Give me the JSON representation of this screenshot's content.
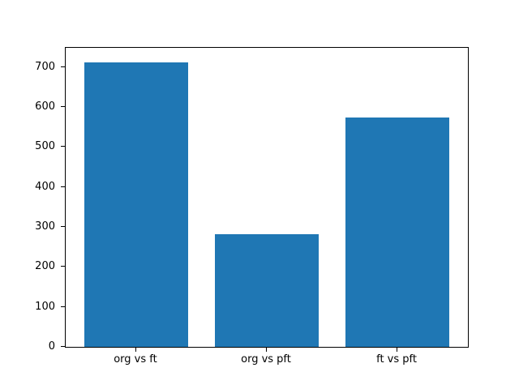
{
  "figure": {
    "background": "#ffffff"
  },
  "chart_data": {
    "type": "bar",
    "categories": [
      "org vs ft",
      "org vs pft",
      "ft vs pft"
    ],
    "values": [
      712,
      281,
      574
    ],
    "title": "",
    "xlabel": "",
    "ylabel": "",
    "ylim": [
      0,
      748
    ],
    "xlim": [
      -0.54,
      2.54
    ],
    "yticks": [
      0,
      100,
      200,
      300,
      400,
      500,
      600,
      700
    ],
    "bar_width": 0.8,
    "bar_color": "#1f77b4",
    "spine_color": "#000000",
    "tick_label_color": "#000000",
    "grid": false,
    "legend": null
  }
}
